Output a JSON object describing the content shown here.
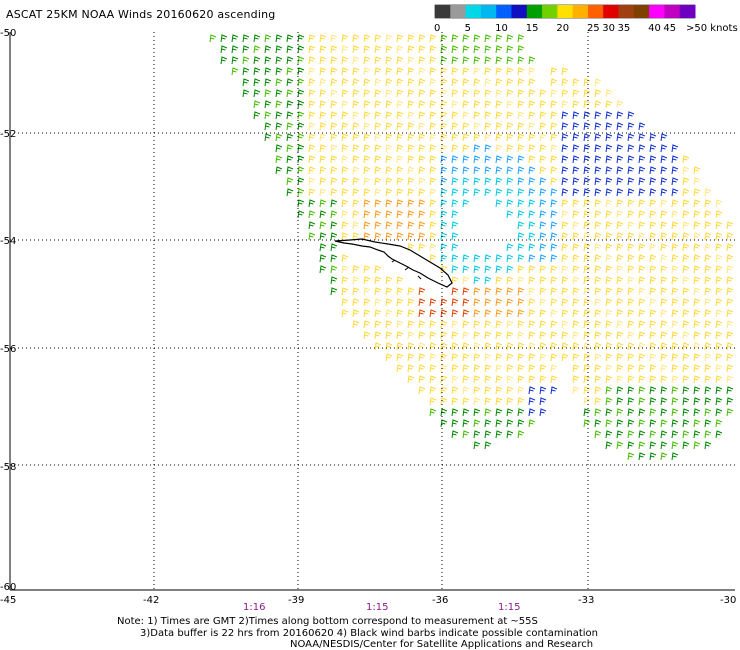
{
  "title": "ASCAT 25KM NOAA Winds 20160620 ascending",
  "legend": {
    "colors": [
      "#3a3a3a",
      "#9a9a9a",
      "#00d8e8",
      "#00b8f0",
      "#0060ff",
      "#1010c0",
      "#00a000",
      "#70d000",
      "#ffe000",
      "#ffb000",
      "#ff6000",
      "#e00000",
      "#a04010",
      "#804000",
      "#ff00ff",
      "#c000c0",
      "#7000c0"
    ],
    "labels": [
      {
        "i": 0,
        "text": "0"
      },
      {
        "i": 2,
        "text": "5"
      },
      {
        "i": 4,
        "text": "10"
      },
      {
        "i": 6,
        "text": "15"
      },
      {
        "i": 8,
        "text": "20"
      },
      {
        "i": 10,
        "text": "25"
      },
      {
        "i": 11,
        "text": "30"
      },
      {
        "i": 12,
        "text": "35"
      },
      {
        "i": 14,
        "text": "40"
      },
      {
        "i": 15,
        "text": "45"
      }
    ],
    "end_label": ">50 knots"
  },
  "lat_labels": [
    "-50",
    "-52",
    "-54",
    "-56",
    "-58",
    "-60"
  ],
  "lon_labels": [
    "-45",
    "-42",
    "-39",
    "-36",
    "-33",
    "-30"
  ],
  "time_labels": [
    "1:16",
    "1:15",
    "1:15"
  ],
  "notes": [
    "Note: 1) Times are GMT 2)Times along bottom correspond to measurement at ~55S",
    "3)Data buffer is 22 hrs from 20160620 4) Black wind barbs indicate possible contamination",
    "NOAA/NESDIS/Center for Satellite Applications and Research"
  ]
}
